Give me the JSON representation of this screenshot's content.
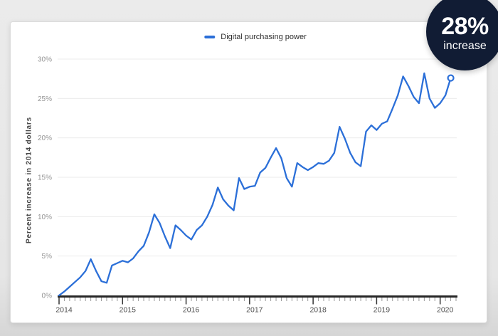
{
  "badge": {
    "value": "28%",
    "label": "increase",
    "color": "#111c34"
  },
  "legend": {
    "label": "Digital purchasing power"
  },
  "chart_data": {
    "type": "line",
    "title": "",
    "xlabel": "",
    "ylabel": "Percent increase in 2014 dollars",
    "x_start": "2014-01",
    "x_end": "2020-03",
    "frequency": "monthly",
    "xtick_labels": [
      "2014",
      "2015",
      "2016",
      "2017",
      "2018",
      "2019",
      "2020"
    ],
    "ytick_values": [
      0,
      5,
      10,
      15,
      20,
      25,
      30
    ],
    "ytick_labels": [
      "0%",
      "5%",
      "10%",
      "15%",
      "20%",
      "25%",
      "30%"
    ],
    "ylim": [
      0,
      30
    ],
    "grid": "horizontal",
    "legend_position": "top-center",
    "line_color": "#2b6fd8",
    "end_marker": "open-circle",
    "series": [
      {
        "name": "Digital purchasing power",
        "values": [
          0.0,
          0.5,
          1.1,
          1.7,
          2.3,
          3.1,
          4.6,
          3.1,
          1.8,
          1.6,
          3.8,
          4.1,
          4.4,
          4.2,
          4.7,
          5.6,
          6.3,
          8.0,
          10.3,
          9.2,
          7.5,
          6.0,
          8.9,
          8.3,
          7.6,
          7.1,
          8.3,
          8.9,
          10.0,
          11.5,
          13.7,
          12.2,
          11.4,
          10.8,
          14.9,
          13.5,
          13.8,
          13.9,
          15.6,
          16.2,
          17.5,
          18.7,
          17.4,
          14.9,
          13.8,
          16.8,
          16.3,
          15.9,
          16.3,
          16.8,
          16.7,
          17.1,
          18.1,
          21.4,
          19.9,
          18.1,
          16.9,
          16.4,
          20.8,
          21.6,
          21.0,
          21.8,
          22.1,
          23.7,
          25.4,
          27.8,
          26.6,
          25.2,
          24.4,
          28.2,
          25.0,
          23.8,
          24.4,
          25.4,
          27.6
        ]
      }
    ]
  }
}
